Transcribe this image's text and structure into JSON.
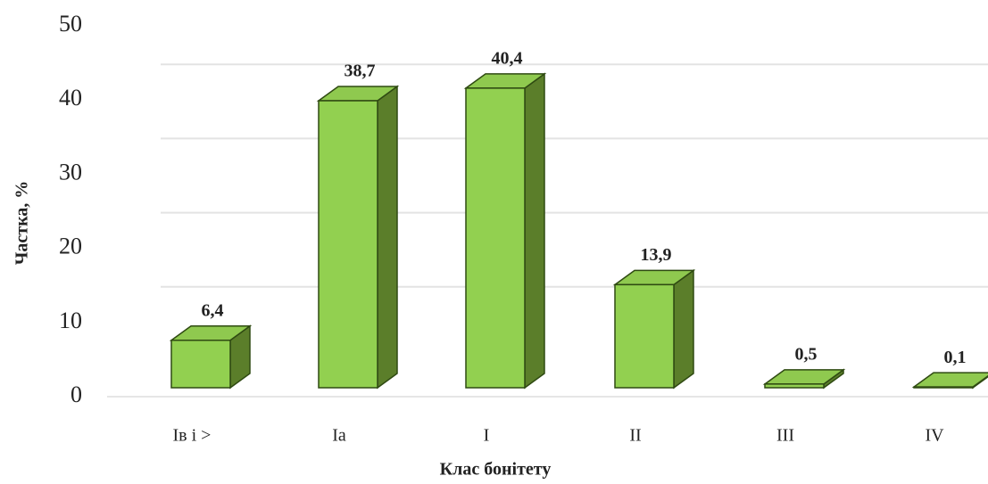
{
  "chart_data": {
    "type": "bar3d",
    "categories": [
      "Iв і >",
      "Ia",
      "I",
      "II",
      "III",
      "IV"
    ],
    "values": [
      6.4,
      38.7,
      40.4,
      13.9,
      0.5,
      0.1
    ],
    "value_labels": [
      "6,4",
      "38,7",
      "40,4",
      "13,9",
      "0,5",
      "0,1"
    ],
    "color": "#92d050",
    "ylim": [
      0,
      50
    ],
    "yticks": [
      0,
      10,
      20,
      30,
      40,
      50
    ],
    "grid": true,
    "xlabel": "Клас бонітету",
    "ylabel": "Частка, %"
  }
}
